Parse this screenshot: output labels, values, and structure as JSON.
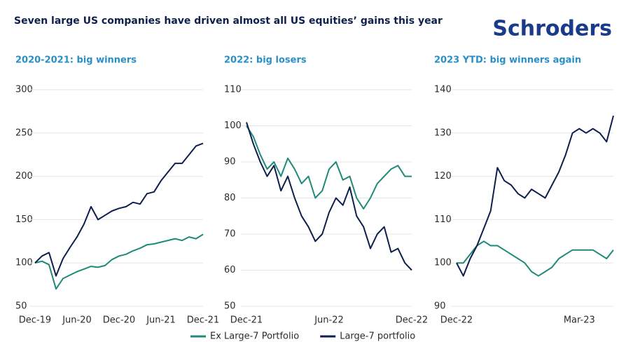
{
  "header": {
    "title": "Seven large US companies have driven almost all US equities’ gains this year",
    "logo": "Schroders"
  },
  "chart_data": [
    {
      "type": "line",
      "title": "2020-2021: big winners",
      "categories": [
        "Dec-19",
        null,
        null,
        null,
        null,
        null,
        "Jun-20",
        null,
        null,
        null,
        null,
        null,
        "Dec-20",
        null,
        null,
        null,
        null,
        null,
        "Jun-21",
        null,
        null,
        null,
        null,
        null,
        "Dec-21"
      ],
      "series": [
        {
          "name": "Ex Large-7 Portfolio",
          "color": "#1e8a78",
          "values": [
            100,
            102,
            98,
            70,
            82,
            86,
            90,
            93,
            96,
            95,
            97,
            104,
            108,
            110,
            114,
            117,
            121,
            122,
            124,
            126,
            128,
            126,
            130,
            128,
            133
          ]
        },
        {
          "name": "Large-7 portfolio",
          "color": "#0e1f4d",
          "values": [
            100,
            108,
            112,
            85,
            105,
            118,
            130,
            145,
            165,
            150,
            155,
            160,
            163,
            165,
            170,
            168,
            180,
            182,
            195,
            205,
            215,
            215,
            225,
            235,
            238
          ]
        }
      ],
      "ylim": [
        50,
        300
      ],
      "yticks": [
        50,
        100,
        150,
        200,
        250,
        300
      ],
      "grid": true
    },
    {
      "type": "line",
      "title": "2022: big losers",
      "categories": [
        "Dec-21",
        null,
        null,
        null,
        null,
        null,
        null,
        null,
        null,
        null,
        null,
        null,
        "Jun-22",
        null,
        null,
        null,
        null,
        null,
        null,
        null,
        null,
        null,
        null,
        null,
        "Dec-22"
      ],
      "series": [
        {
          "name": "Ex Large-7 Portfolio",
          "color": "#1e8a78",
          "values": [
            100,
            97,
            92,
            88,
            90,
            86,
            91,
            88,
            84,
            86,
            80,
            82,
            88,
            90,
            85,
            86,
            80,
            77,
            80,
            84,
            86,
            88,
            89,
            86,
            86
          ]
        },
        {
          "name": "Large-7 portfolio",
          "color": "#0e1f4d",
          "values": [
            101,
            95,
            90,
            86,
            89,
            82,
            86,
            80,
            75,
            72,
            68,
            70,
            76,
            80,
            78,
            83,
            75,
            72,
            66,
            70,
            72,
            65,
            66,
            62,
            60
          ]
        }
      ],
      "ylim": [
        50,
        110
      ],
      "yticks": [
        50,
        60,
        70,
        80,
        90,
        100,
        110
      ],
      "grid": true
    },
    {
      "type": "line",
      "title": "2023 YTD: big winners again",
      "categories": [
        "Dec-22",
        null,
        null,
        null,
        null,
        null,
        null,
        null,
        null,
        null,
        null,
        null,
        null,
        null,
        null,
        null,
        null,
        null,
        "Mar-23",
        null,
        null,
        null,
        null,
        null
      ],
      "series": [
        {
          "name": "Ex Large-7 Portfolio",
          "color": "#1e8a78",
          "values": [
            100,
            100,
            102,
            104,
            105,
            104,
            104,
            103,
            102,
            101,
            100,
            98,
            97,
            98,
            99,
            101,
            102,
            103,
            103,
            103,
            103,
            102,
            101,
            103
          ]
        },
        {
          "name": "Large-7 portfolio",
          "color": "#0e1f4d",
          "values": [
            100,
            97,
            101,
            104,
            108,
            112,
            122,
            119,
            118,
            116,
            115,
            117,
            116,
            115,
            118,
            121,
            125,
            130,
            131,
            130,
            131,
            130,
            128,
            134
          ]
        }
      ],
      "ylim": [
        90,
        140
      ],
      "yticks": [
        90,
        100,
        110,
        120,
        130,
        140
      ],
      "grid": true
    }
  ]
}
